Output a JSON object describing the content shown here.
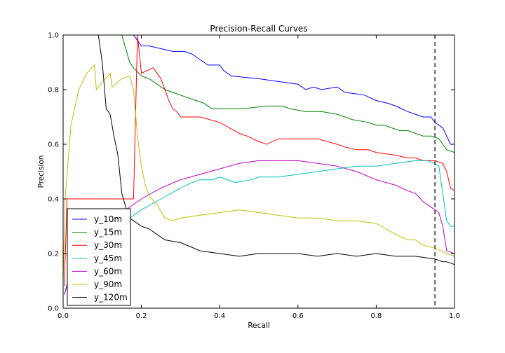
{
  "chart_data": {
    "type": "line",
    "title": "Precision-Recall Curves",
    "xlabel": "Recall",
    "ylabel": "Precision",
    "xlim": [
      0.0,
      1.0
    ],
    "ylim": [
      0.0,
      1.0
    ],
    "xticks": [
      "0.0",
      "0.2",
      "0.4",
      "0.6",
      "0.8",
      "1.0"
    ],
    "yticks": [
      "0.0",
      "0.2",
      "0.4",
      "0.6",
      "0.8",
      "1.0"
    ],
    "grid": false,
    "legend_position": "lower-left",
    "threshold_line": {
      "x": 0.95,
      "style": "dashed",
      "color": "#000000"
    },
    "series": [
      {
        "name": "y_10m",
        "color": "#0000ff",
        "x": [
          0.18,
          0.19,
          0.2,
          0.22,
          0.25,
          0.28,
          0.31,
          0.33,
          0.35,
          0.37,
          0.4,
          0.41,
          0.43,
          0.5,
          0.6,
          0.62,
          0.64,
          0.66,
          0.7,
          0.72,
          0.77,
          0.8,
          0.83,
          0.85,
          0.88,
          0.9,
          0.92,
          0.94,
          0.95,
          0.96,
          0.97,
          0.98,
          0.99,
          1.0
        ],
        "y": [
          1.0,
          0.98,
          0.96,
          0.96,
          0.95,
          0.94,
          0.94,
          0.93,
          0.91,
          0.89,
          0.89,
          0.87,
          0.85,
          0.84,
          0.82,
          0.8,
          0.81,
          0.8,
          0.81,
          0.79,
          0.78,
          0.76,
          0.75,
          0.74,
          0.72,
          0.71,
          0.7,
          0.7,
          0.68,
          0.67,
          0.66,
          0.63,
          0.6,
          0.6
        ]
      },
      {
        "name": "y_15m",
        "color": "#007f00",
        "x": [
          0.15,
          0.16,
          0.17,
          0.18,
          0.2,
          0.22,
          0.24,
          0.26,
          0.28,
          0.3,
          0.34,
          0.36,
          0.38,
          0.46,
          0.52,
          0.56,
          0.58,
          0.62,
          0.66,
          0.7,
          0.74,
          0.78,
          0.8,
          0.82,
          0.84,
          0.86,
          0.88,
          0.9,
          0.92,
          0.94,
          0.96,
          0.98,
          1.0
        ],
        "y": [
          1.0,
          0.95,
          0.9,
          0.88,
          0.85,
          0.84,
          0.82,
          0.8,
          0.79,
          0.78,
          0.76,
          0.75,
          0.73,
          0.73,
          0.74,
          0.74,
          0.73,
          0.72,
          0.72,
          0.71,
          0.69,
          0.68,
          0.67,
          0.67,
          0.66,
          0.65,
          0.65,
          0.64,
          0.63,
          0.63,
          0.62,
          0.58,
          0.57
        ]
      },
      {
        "name": "y_30m",
        "color": "#ff0000",
        "x": [
          0.003,
          0.01,
          0.18,
          0.19,
          0.2,
          0.23,
          0.25,
          0.27,
          0.28,
          0.29,
          0.3,
          0.35,
          0.4,
          0.45,
          0.47,
          0.5,
          0.52,
          0.55,
          0.6,
          0.65,
          0.7,
          0.72,
          0.75,
          0.78,
          0.8,
          0.85,
          0.88,
          0.9,
          0.92,
          0.95,
          0.97,
          0.98,
          0.99,
          1.0
        ],
        "y": [
          0.08,
          0.4,
          0.4,
          1.0,
          0.86,
          0.88,
          0.84,
          0.76,
          0.73,
          0.72,
          0.7,
          0.7,
          0.68,
          0.64,
          0.63,
          0.61,
          0.6,
          0.62,
          0.62,
          0.62,
          0.6,
          0.59,
          0.58,
          0.58,
          0.57,
          0.56,
          0.55,
          0.55,
          0.54,
          0.54,
          0.53,
          0.5,
          0.44,
          0.43
        ]
      },
      {
        "name": "y_45m",
        "color": "#00bfbf",
        "x": [
          0.003,
          0.02,
          0.05,
          0.1,
          0.15,
          0.2,
          0.25,
          0.3,
          0.33,
          0.35,
          0.38,
          0.4,
          0.44,
          0.48,
          0.5,
          0.55,
          0.6,
          0.65,
          0.7,
          0.75,
          0.8,
          0.85,
          0.9,
          0.93,
          0.95,
          0.96,
          0.97,
          0.98,
          0.99,
          1.0
        ],
        "y": [
          0.05,
          0.12,
          0.18,
          0.24,
          0.31,
          0.36,
          0.4,
          0.44,
          0.46,
          0.47,
          0.47,
          0.48,
          0.46,
          0.47,
          0.48,
          0.48,
          0.49,
          0.5,
          0.51,
          0.52,
          0.52,
          0.53,
          0.54,
          0.54,
          0.53,
          0.52,
          0.42,
          0.32,
          0.3,
          0.3
        ]
      },
      {
        "name": "y_60m",
        "color": "#bf00bf",
        "x": [
          0.003,
          0.02,
          0.05,
          0.1,
          0.15,
          0.2,
          0.25,
          0.3,
          0.35,
          0.4,
          0.45,
          0.5,
          0.55,
          0.6,
          0.65,
          0.7,
          0.75,
          0.8,
          0.85,
          0.88,
          0.9,
          0.92,
          0.94,
          0.95,
          0.96,
          0.97,
          0.98,
          1.0
        ],
        "y": [
          0.05,
          0.14,
          0.22,
          0.3,
          0.35,
          0.4,
          0.44,
          0.47,
          0.49,
          0.51,
          0.53,
          0.54,
          0.54,
          0.54,
          0.53,
          0.52,
          0.5,
          0.47,
          0.45,
          0.43,
          0.42,
          0.39,
          0.37,
          0.36,
          0.35,
          0.3,
          0.21,
          0.2
        ]
      },
      {
        "name": "y_90m",
        "color": "#bfbf00",
        "x": [
          0.0,
          0.005,
          0.02,
          0.04,
          0.06,
          0.08,
          0.085,
          0.09,
          0.12,
          0.125,
          0.15,
          0.17,
          0.18,
          0.19,
          0.2,
          0.21,
          0.22,
          0.24,
          0.26,
          0.28,
          0.3,
          0.35,
          0.4,
          0.45,
          0.5,
          0.55,
          0.6,
          0.65,
          0.7,
          0.75,
          0.8,
          0.85,
          0.88,
          0.9,
          0.92,
          0.95,
          0.98,
          1.0
        ],
        "y": [
          0.1,
          0.4,
          0.67,
          0.8,
          0.86,
          0.89,
          0.8,
          0.81,
          0.86,
          0.81,
          0.84,
          0.85,
          0.8,
          0.63,
          0.52,
          0.45,
          0.41,
          0.38,
          0.33,
          0.32,
          0.33,
          0.34,
          0.35,
          0.36,
          0.35,
          0.34,
          0.33,
          0.33,
          0.32,
          0.32,
          0.31,
          0.27,
          0.25,
          0.25,
          0.23,
          0.22,
          0.2,
          0.19
        ]
      },
      {
        "name": "y_120m",
        "color": "#000000",
        "x": [
          0.09,
          0.1,
          0.11,
          0.12,
          0.13,
          0.14,
          0.15,
          0.16,
          0.17,
          0.18,
          0.2,
          0.22,
          0.24,
          0.26,
          0.3,
          0.35,
          0.4,
          0.45,
          0.5,
          0.55,
          0.6,
          0.65,
          0.7,
          0.75,
          0.8,
          0.85,
          0.9,
          0.95,
          0.97,
          0.98,
          1.0
        ],
        "y": [
          1.0,
          0.9,
          0.73,
          0.71,
          0.63,
          0.56,
          0.42,
          0.37,
          0.33,
          0.32,
          0.3,
          0.29,
          0.27,
          0.25,
          0.24,
          0.21,
          0.2,
          0.19,
          0.2,
          0.2,
          0.2,
          0.19,
          0.2,
          0.19,
          0.2,
          0.19,
          0.19,
          0.18,
          0.17,
          0.17,
          0.16
        ]
      }
    ]
  }
}
